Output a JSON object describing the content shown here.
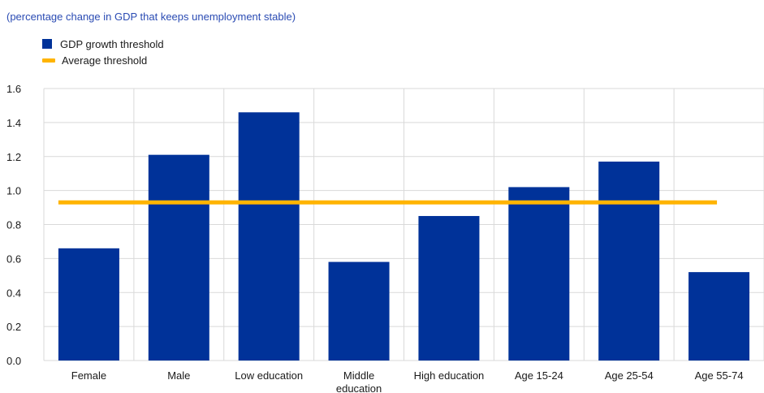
{
  "subtitle": "(percentage change in GDP that keeps unemployment stable)",
  "legend": {
    "bar_label": "GDP growth threshold",
    "line_label": "Average threshold"
  },
  "colors": {
    "bar": "#003299",
    "line": "#ffb400",
    "grid": "#d9d9d9",
    "text": "#1a1a1a",
    "subtitle": "#2a4bb3"
  },
  "chart_data": {
    "type": "bar",
    "title": "",
    "subtitle": "(percentage change in GDP that keeps unemployment stable)",
    "xlabel": "",
    "ylabel": "",
    "ylim": [
      0,
      1.6
    ],
    "yticks": [
      "0.0",
      "0.2",
      "0.4",
      "0.6",
      "0.8",
      "1.0",
      "1.2",
      "1.4",
      "1.6"
    ],
    "grid": true,
    "legend_position": "top-left",
    "categories": [
      "Female",
      "Male",
      "Low education",
      "Middle education",
      "High education",
      "Age 15-24",
      "Age 25-54",
      "Age 55-74"
    ],
    "series": [
      {
        "name": "GDP growth threshold",
        "type": "bar",
        "values": [
          0.66,
          1.21,
          1.46,
          0.58,
          0.85,
          1.02,
          1.17,
          0.52
        ]
      },
      {
        "name": "Average threshold",
        "type": "line",
        "values": [
          0.93,
          0.93,
          0.93,
          0.93,
          0.93,
          0.93,
          0.93,
          0.93
        ]
      }
    ]
  }
}
